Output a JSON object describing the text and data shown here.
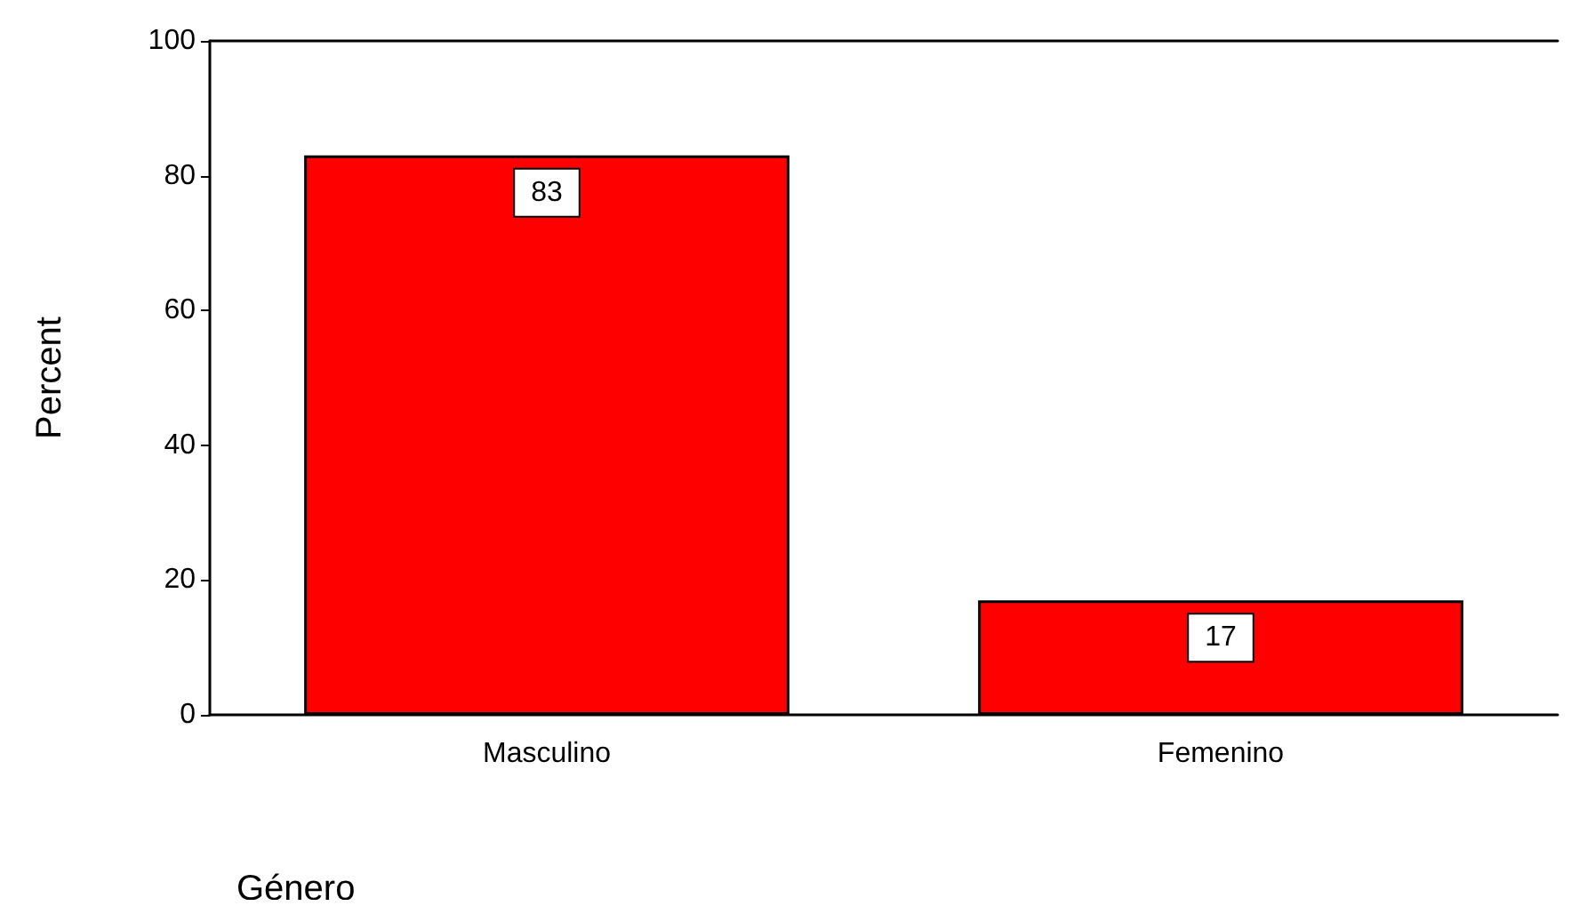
{
  "chart_data": {
    "type": "bar",
    "xlabel": "Género",
    "ylabel": "Percent",
    "categories": [
      "Masculino",
      "Femenino"
    ],
    "values": [
      83,
      17
    ],
    "color": "#ff0000",
    "ylim": [
      0,
      100
    ],
    "yticks": [
      0,
      20,
      40,
      60,
      80,
      100
    ],
    "data_labels": true
  }
}
